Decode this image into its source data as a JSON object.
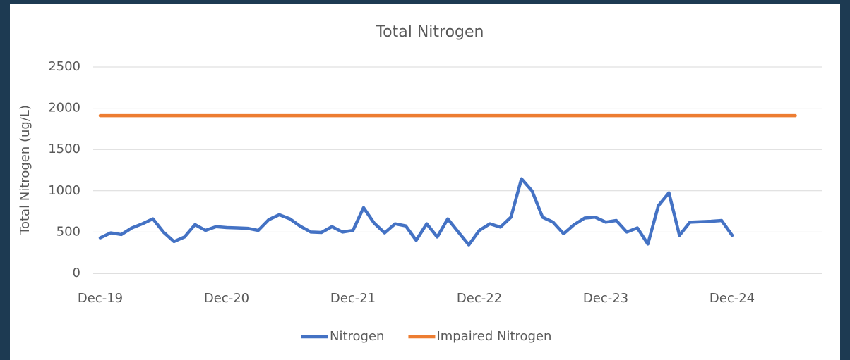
{
  "chart_data": {
    "type": "line",
    "title": "Total Nitrogen",
    "y_label": "Total Nitrogen (ug/L)",
    "categories": [
      "Dec-19",
      null,
      null,
      null,
      null,
      null,
      null,
      null,
      null,
      null,
      null,
      null,
      "Dec-20",
      null,
      null,
      null,
      null,
      null,
      null,
      null,
      null,
      null,
      null,
      null,
      "Dec-21",
      null,
      null,
      null,
      null,
      null,
      null,
      null,
      null,
      null,
      null,
      null,
      "Dec-22",
      null,
      null,
      null,
      null,
      null,
      null,
      null,
      null,
      null,
      null,
      null,
      "Dec-23",
      null,
      null,
      null,
      null,
      null,
      null,
      null,
      null,
      null,
      null,
      null,
      "Dec-24",
      null,
      null,
      null,
      null,
      null,
      null
    ],
    "series": [
      {
        "name": "Nitrogen",
        "color": "#4472c4",
        "values": [
          430,
          490,
          470,
          550,
          600,
          660,
          500,
          385,
          440,
          590,
          520,
          565,
          555,
          550,
          545,
          520,
          650,
          710,
          660,
          570,
          500,
          495,
          565,
          500,
          520,
          795,
          610,
          490,
          600,
          575,
          400,
          600,
          440,
          660,
          500,
          345,
          520,
          600,
          560,
          680,
          1145,
          1000,
          680,
          620,
          480,
          590,
          670,
          680,
          620,
          640,
          500,
          550,
          355,
          820,
          975,
          460,
          620,
          625,
          630,
          640,
          460,
          null,
          null,
          null,
          null,
          null,
          null
        ]
      },
      {
        "name": "Impaired Nitrogen",
        "color": "#ed7d31",
        "values": [
          1910,
          1910,
          1910,
          1910,
          1910,
          1910,
          1910,
          1910,
          1910,
          1910,
          1910,
          1910,
          1910,
          1910,
          1910,
          1910,
          1910,
          1910,
          1910,
          1910,
          1910,
          1910,
          1910,
          1910,
          1910,
          1910,
          1910,
          1910,
          1910,
          1910,
          1910,
          1910,
          1910,
          1910,
          1910,
          1910,
          1910,
          1910,
          1910,
          1910,
          1910,
          1910,
          1910,
          1910,
          1910,
          1910,
          1910,
          1910,
          1910,
          1910,
          1910,
          1910,
          1910,
          1910,
          1910,
          1910,
          1910,
          1910,
          1910,
          1910,
          1910,
          1910,
          1910,
          1910,
          1910,
          1910,
          1910
        ]
      }
    ],
    "ylim": [
      0,
      2500
    ],
    "yticks": [
      0,
      500,
      1000,
      1500,
      2000,
      2500
    ],
    "grid": true,
    "legend": "bottom"
  }
}
